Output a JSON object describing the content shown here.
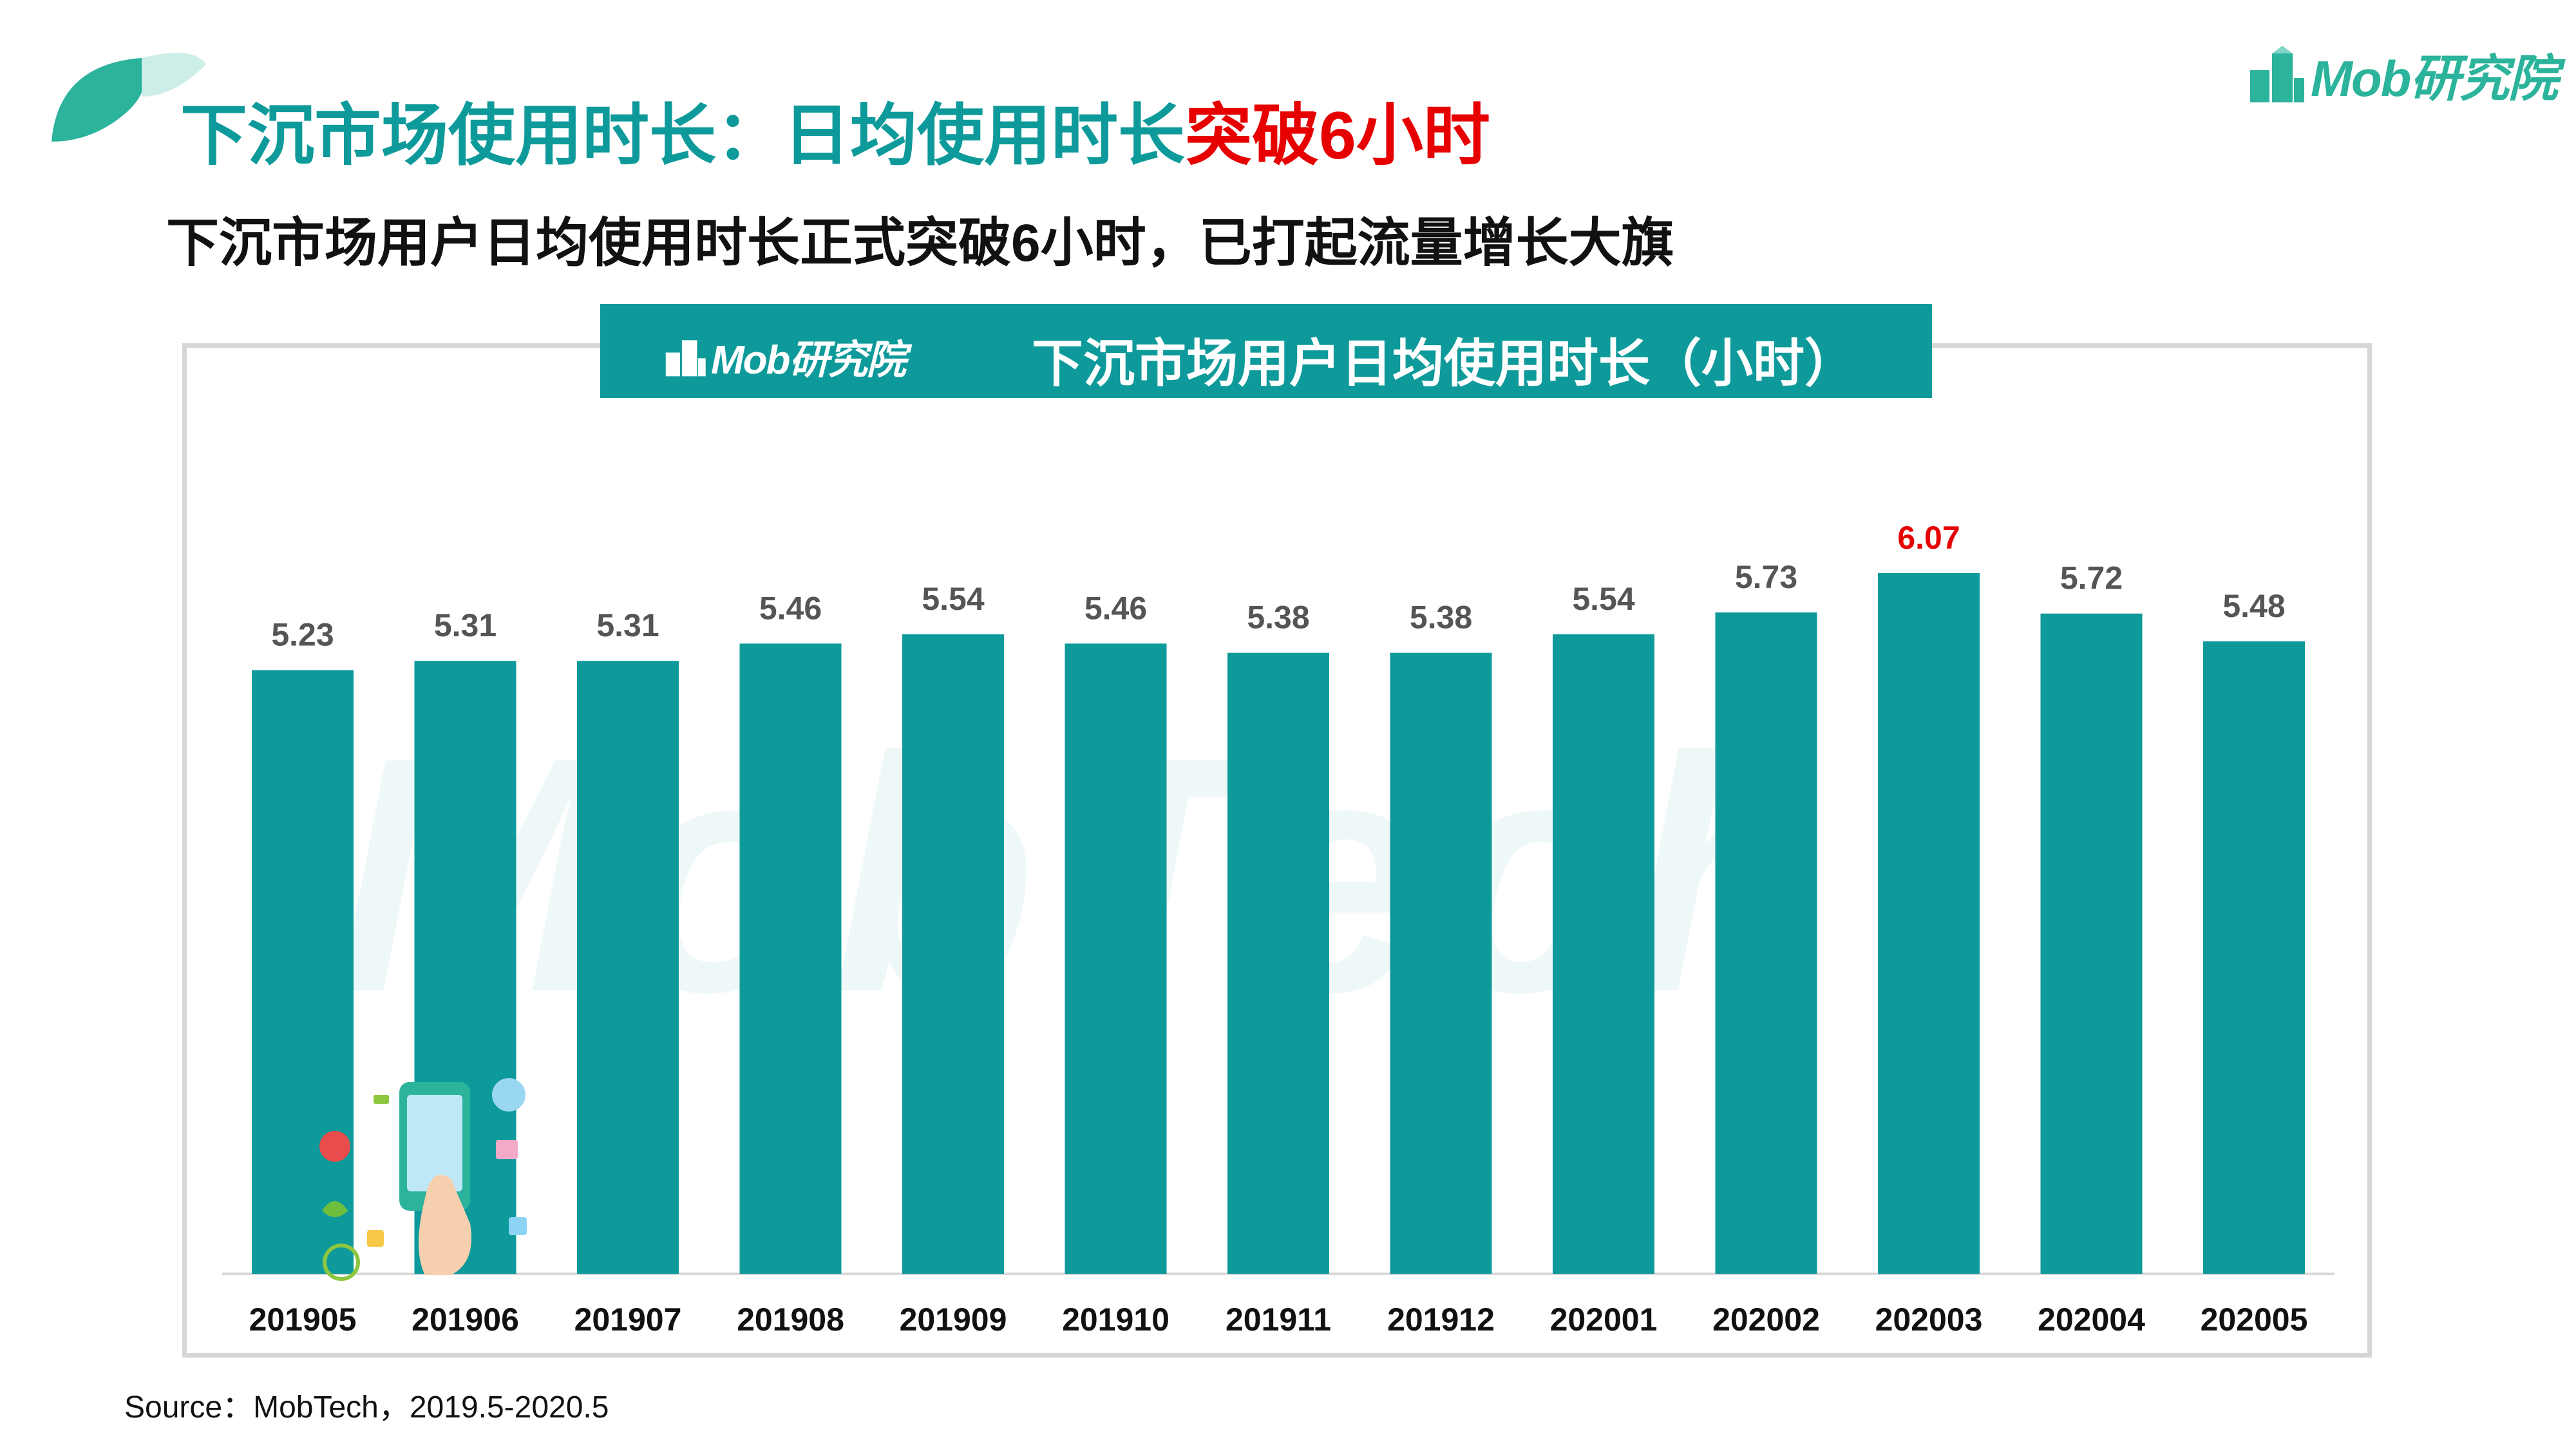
{
  "header": {
    "title_main": "下沉市场使用时长：日均使用时长",
    "title_highlight": "突破6小时",
    "subtitle": "下沉市场用户日均使用时长正式突破6小时，已打起流量增长大旗"
  },
  "brand": {
    "name": "Mob研究院",
    "icon": "building-logo-icon"
  },
  "chart_title": "下沉市场用户日均使用时长（小时）",
  "watermark": "MobTech",
  "source": "Source：MobTech，2019.5-2020.5",
  "colors": {
    "bar": "#0e9a9a",
    "label": "#555555",
    "highlight": "#e60000",
    "accent": "#2bb39b"
  },
  "chart_data": {
    "type": "bar",
    "title": "下沉市场用户日均使用时长（小时）",
    "categories": [
      "201905",
      "201906",
      "201907",
      "201908",
      "201909",
      "201910",
      "201911",
      "201912",
      "202001",
      "202002",
      "202003",
      "202004",
      "202005"
    ],
    "values": [
      5.23,
      5.31,
      5.31,
      5.46,
      5.54,
      5.46,
      5.38,
      5.38,
      5.54,
      5.73,
      6.07,
      5.72,
      5.48
    ],
    "value_labels": [
      "5.23",
      "5.31",
      "5.31",
      "5.46",
      "5.54",
      "5.46",
      "5.38",
      "5.38",
      "5.54",
      "5.73",
      "6.07",
      "5.72",
      "5.48"
    ],
    "highlight_index": 10,
    "ylim": [
      0,
      6.07
    ],
    "grid": false,
    "legend": "none",
    "xlabel": "",
    "ylabel": ""
  }
}
